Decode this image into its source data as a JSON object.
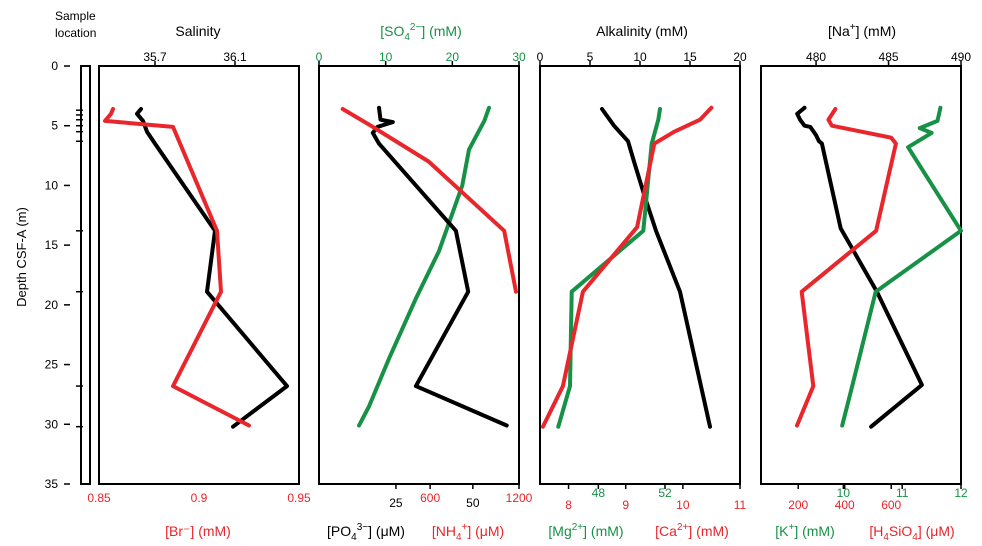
{
  "colors": {
    "black": "#000000",
    "red": "#e8262b",
    "green": "#169146"
  },
  "y_axis": {
    "label": "Depth CSF-A (m)",
    "range": [
      0,
      35
    ],
    "ticks": [
      "0",
      "5",
      "10",
      "15",
      "20",
      "25",
      "30",
      "35"
    ]
  },
  "sample_location": {
    "label_line1": "Sample",
    "label_line2": "location",
    "depths": [
      3.7,
      4.1,
      4.5,
      5.0,
      5.5,
      6.3,
      13.8,
      18.9,
      26.8,
      30.2
    ]
  },
  "chart_data": [
    {
      "type": "line",
      "panel": 1,
      "ylabel": "Depth CSF-A (m)",
      "ylim": [
        35,
        0
      ],
      "top_axis": {
        "label": "Salinity",
        "color": "#000000",
        "range": [
          35.42,
          36.42
        ],
        "ticks": [
          "35.7",
          "36.1"
        ],
        "tick_values": [
          35.7,
          36.1
        ]
      },
      "bottom_axis": {
        "label": "[Br⁻] (mM)",
        "color": "#e8262b",
        "range": [
          0.85,
          0.95
        ],
        "ticks": [
          "0.85",
          "0.9",
          "0.95"
        ],
        "tick_values": [
          0.85,
          0.9,
          0.95
        ]
      },
      "series": [
        {
          "axis": "top",
          "color": "#000000",
          "x": [
            35.63,
            35.61,
            35.64,
            35.66,
            35.7,
            36.0,
            35.96,
            36.36,
            36.09
          ],
          "y": [
            3.6,
            4.0,
            4.6,
            5.5,
            6.5,
            13.8,
            18.9,
            26.8,
            30.2
          ]
        },
        {
          "axis": "bottom",
          "color": "#e8262b",
          "x": [
            0.857,
            0.856,
            0.853,
            0.887,
            0.909,
            0.911,
            0.887,
            0.925
          ],
          "y": [
            3.6,
            4.0,
            4.6,
            5.1,
            13.8,
            18.9,
            26.8,
            30.1
          ]
        }
      ]
    },
    {
      "type": "line",
      "panel": 2,
      "ylim": [
        35,
        0
      ],
      "top_axis": {
        "label": "[SO₄²⁻] (mM)",
        "color": "#169146",
        "range": [
          0,
          30
        ],
        "ticks": [
          "0",
          "10",
          "20",
          "30"
        ],
        "tick_values": [
          0,
          10,
          20,
          30
        ]
      },
      "bottom_axis_1": {
        "label": "[PO₄³⁻] (μM)",
        "color": "#000000",
        "range": [
          0,
          65
        ],
        "ticks": [
          "25",
          "50"
        ],
        "tick_values": [
          25,
          50
        ]
      },
      "bottom_axis_2": {
        "label": "[NH₄⁺] (μM)",
        "color": "#e8262b",
        "range": [
          -150,
          1200
        ],
        "ticks": [
          "600",
          "1200"
        ],
        "tick_values": [
          600,
          1200
        ]
      },
      "series": [
        {
          "axis": "top",
          "color": "#169146",
          "x": [
            25.5,
            24.8,
            22.5,
            21.5,
            18.0,
            14.5,
            10.5,
            7.5,
            6.0
          ],
          "y": [
            3.5,
            4.6,
            7.0,
            10.0,
            15.5,
            19.5,
            24.5,
            28.5,
            30.1
          ]
        },
        {
          "axis": "bottom_1",
          "color": "#000000",
          "x": [
            19.5,
            20.0,
            24.0,
            19.0,
            17.5,
            19.5,
            44.5,
            48.5,
            31.5,
            61.0
          ],
          "y": [
            3.5,
            4.5,
            4.7,
            5.1,
            5.6,
            6.5,
            13.8,
            18.9,
            26.8,
            30.1
          ]
        },
        {
          "axis": "bottom_2",
          "color": "#e8262b",
          "x": [
            10,
            200,
            590,
            1100,
            1180
          ],
          "y": [
            3.6,
            5.0,
            8.0,
            13.8,
            18.9
          ]
        }
      ]
    },
    {
      "type": "line",
      "panel": 3,
      "ylim": [
        35,
        0
      ],
      "top_axis": {
        "label": "Alkalinity (mM)",
        "color": "#000000",
        "range": [
          0,
          20
        ],
        "ticks": [
          "0",
          "5",
          "10",
          "15",
          "20"
        ],
        "tick_values": [
          0,
          5,
          10,
          15,
          20
        ]
      },
      "bottom_axis_1": {
        "label": "[Mg²⁺] (mM)",
        "color": "#169146",
        "range": [
          44.5,
          56.5
        ],
        "ticks": [
          "48",
          "52"
        ],
        "tick_values": [
          48,
          52
        ]
      },
      "bottom_axis_2": {
        "label": "[Ca²⁺] (mM)",
        "color": "#e8262b",
        "range": [
          7.5,
          11.0
        ],
        "ticks": [
          "8",
          "9",
          "10",
          "11"
        ],
        "tick_values": [
          8,
          9,
          10,
          11
        ]
      },
      "series": [
        {
          "axis": "top",
          "color": "#000000",
          "x": [
            6.2,
            7.4,
            8.8,
            9.4,
            10.5,
            11.6,
            14.0,
            17.0
          ],
          "y": [
            3.6,
            5.0,
            6.3,
            8.0,
            11.0,
            13.8,
            18.9,
            30.2
          ]
        },
        {
          "axis": "bottom_1",
          "color": "#169146",
          "x": [
            51.7,
            51.6,
            51.4,
            51.2,
            50.7,
            46.4,
            46.3,
            45.6
          ],
          "y": [
            3.6,
            4.5,
            5.5,
            6.5,
            13.8,
            18.9,
            26.8,
            30.2
          ]
        },
        {
          "axis": "bottom_2",
          "color": "#e8262b",
          "x": [
            10.5,
            10.3,
            9.85,
            9.5,
            9.2,
            8.25,
            7.9,
            7.55
          ],
          "y": [
            3.5,
            4.5,
            5.5,
            6.5,
            13.5,
            18.9,
            26.8,
            30.2
          ]
        }
      ]
    },
    {
      "type": "line",
      "panel": 4,
      "ylim": [
        35,
        0
      ],
      "top_axis": {
        "label": "[Na⁺] (mM)",
        "color": "#000000",
        "range": [
          476.2,
          490
        ],
        "ticks": [
          "480",
          "485",
          "490"
        ],
        "tick_values": [
          480,
          485,
          490
        ]
      },
      "bottom_axis_1": {
        "label": "[K⁺] (mM)",
        "color": "#169146",
        "range": [
          8.6,
          12
        ],
        "ticks": [
          "10",
          "11",
          "12"
        ],
        "tick_values": [
          10,
          11,
          12
        ]
      },
      "bottom_axis_2": {
        "label": "[H₄SiO₄] (μM)",
        "color": "#e8262b",
        "range": [
          40,
          900
        ],
        "ticks": [
          "200",
          "400",
          "600"
        ],
        "tick_values": [
          200,
          400,
          600
        ]
      },
      "series": [
        {
          "axis": "top",
          "color": "#000000",
          "x": [
            479.2,
            478.7,
            478.9,
            479.2,
            479.6,
            480.0,
            480.2,
            480.4,
            481.7,
            484.2,
            487.3,
            483.8
          ],
          "y": [
            3.5,
            4.0,
            4.5,
            5.0,
            5.1,
            5.8,
            6.3,
            6.5,
            13.6,
            18.9,
            26.7,
            30.2
          ]
        },
        {
          "axis": "bottom_1",
          "color": "#169146",
          "x": [
            11.65,
            11.6,
            11.3,
            11.5,
            11.1,
            12.0,
            10.55,
            10.15,
            9.98
          ],
          "y": [
            3.5,
            4.6,
            5.2,
            5.6,
            6.8,
            13.8,
            18.9,
            26.8,
            30.1
          ]
        },
        {
          "axis": "bottom_2",
          "color": "#e8262b",
          "x": [
            360,
            330,
            345,
            600,
            620,
            535,
            215,
            265,
            195
          ],
          "y": [
            3.6,
            4.5,
            5.0,
            6.0,
            6.5,
            13.8,
            18.9,
            26.8,
            30.1
          ]
        }
      ]
    }
  ]
}
